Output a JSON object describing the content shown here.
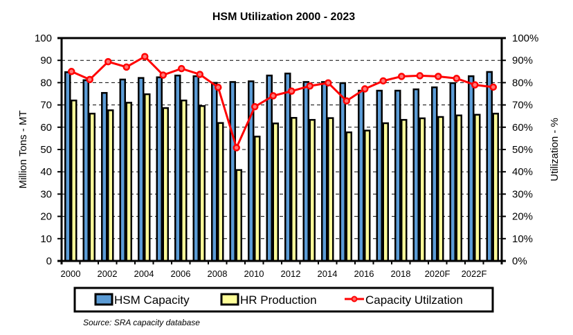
{
  "chart_data": {
    "type": "bar",
    "title": "HSM Utilization  2000 - 2023",
    "categories": [
      "2000",
      "2001",
      "2002",
      "2003",
      "2004",
      "2005",
      "2006",
      "2007",
      "2008",
      "2009",
      "2010",
      "2011",
      "2012",
      "2013",
      "2014",
      "2015",
      "2016",
      "2017",
      "2018",
      "2019",
      "2020F",
      "2021F",
      "2022F",
      "2023F"
    ],
    "tick_labels": [
      "2000",
      "",
      "2002",
      "",
      "2004",
      "",
      "2006",
      "",
      "2008",
      "",
      "2010",
      "",
      "2012",
      "",
      "2014",
      "",
      "2016",
      "",
      "2018",
      "",
      "2020F",
      "",
      "2022F",
      ""
    ],
    "series": [
      {
        "name": "HSM Capacity",
        "type": "bar",
        "axis": "left",
        "color": "#5b9bd5",
        "values": [
          84.7,
          81.1,
          75.4,
          81.4,
          82.1,
          82.4,
          83.2,
          82.9,
          79.9,
          80.3,
          80.6,
          83.2,
          84.1,
          80.3,
          80.3,
          79.8,
          76.4,
          76.4,
          76.4,
          77.0,
          77.9,
          79.8,
          82.9,
          84.8
        ]
      },
      {
        "name": "HR Production",
        "type": "bar",
        "axis": "left",
        "color": "#ffff99",
        "values": [
          72.0,
          66.1,
          67.6,
          71.0,
          74.8,
          68.6,
          72.0,
          69.5,
          61.9,
          40.8,
          55.8,
          61.7,
          64.2,
          63.3,
          64.1,
          57.7,
          58.5,
          61.8,
          63.3,
          64.0,
          64.6,
          65.3,
          65.6,
          66.1
        ]
      },
      {
        "name": "Capacity Utilzation",
        "type": "line",
        "axis": "right",
        "color": "#ff0000",
        "unit": "%",
        "values": [
          85.0,
          81.4,
          89.4,
          87.0,
          91.7,
          83.4,
          86.3,
          83.7,
          77.9,
          50.8,
          69.2,
          74.1,
          76.2,
          78.5,
          79.9,
          71.8,
          77.2,
          80.8,
          82.8,
          83.1,
          82.8,
          81.9,
          79.0,
          78.0
        ]
      }
    ],
    "xlabel": "",
    "ylabel": "Million Tons - MT",
    "y2label": "Utilization - %",
    "ylim": [
      0,
      100
    ],
    "y2lim": [
      0,
      100
    ],
    "yticks": [
      "0",
      "10",
      "20",
      "30",
      "40",
      "50",
      "60",
      "70",
      "80",
      "90",
      "100"
    ],
    "y2ticks": [
      "0%",
      "10%",
      "20%",
      "30%",
      "40%",
      "50%",
      "60%",
      "70%",
      "80%",
      "90%",
      "100%"
    ],
    "grid": "horizontal dashed",
    "legend": {
      "position": "bottom",
      "entries": [
        "HSM Capacity",
        "HR Production",
        "Capacity Utilzation"
      ]
    },
    "source": "Source: SRA capacity database"
  }
}
